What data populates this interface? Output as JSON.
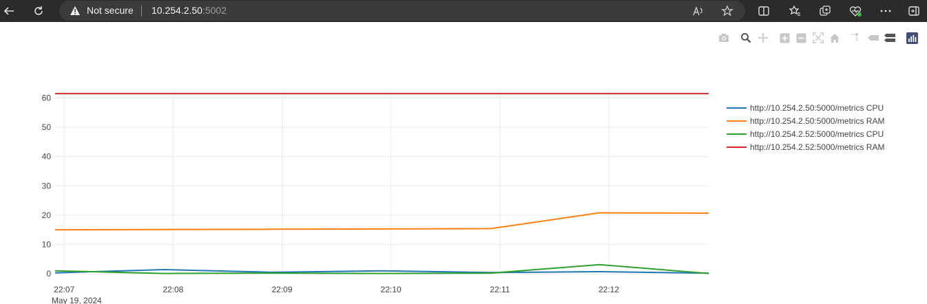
{
  "browser": {
    "security_status": "Not secure",
    "url_host": "10.254.2.50",
    "url_port": ":5002",
    "icons": [
      "back-arrow-icon",
      "refresh-icon",
      "warning-icon",
      "read-aloud-icon",
      "favorite-star-icon",
      "split-screen-icon",
      "favorites-icon",
      "collections-icon",
      "browser-essentials-icon",
      "more-icon",
      "sidebar-toggle-icon"
    ]
  },
  "modebar": {
    "icons": [
      "camera-icon",
      "zoom-icon",
      "pan-icon",
      "zoom-in-icon",
      "zoom-out-icon",
      "autoscale-icon",
      "reset-axes-icon",
      "spike-lines-icon",
      "hover-closest-icon",
      "hover-compare-icon",
      "plotly-logo-icon"
    ]
  },
  "colors": {
    "series1": "#1f77b4",
    "series2": "#ff7f0e",
    "series3": "#2ca02c",
    "series4": "#d62728"
  },
  "chart_data": {
    "type": "line",
    "title": "",
    "xlabel": "",
    "ylabel": "",
    "x_date_label": "May 19, 2024",
    "x_ticks": [
      "22:07",
      "22:08",
      "22:09",
      "22:10",
      "22:11",
      "22:12"
    ],
    "x": [
      "22:06:55",
      "22:07:55",
      "22:08:55",
      "22:09:55",
      "22:10:55",
      "22:11:55",
      "22:12:55"
    ],
    "xlim": [
      "22:06:55",
      "22:12:55"
    ],
    "y_ticks": [
      0,
      10,
      20,
      30,
      40,
      50,
      60
    ],
    "ylim": [
      0,
      62
    ],
    "grid": true,
    "legend_placement": "right",
    "series": [
      {
        "name": "http://10.254.2.50:5000/metrics CPU",
        "color_key": "series1",
        "values": [
          0.3,
          1.4,
          0.5,
          1.0,
          0.4,
          0.7,
          0.2
        ]
      },
      {
        "name": "http://10.254.2.50:5000/metrics RAM",
        "color_key": "series2",
        "values": [
          15.0,
          15.1,
          15.2,
          15.3,
          15.4,
          20.8,
          20.7
        ]
      },
      {
        "name": "http://10.254.2.52:5000/metrics CPU",
        "color_key": "series3",
        "values": [
          1.0,
          0.1,
          0.2,
          0.1,
          0.2,
          3.1,
          0.1
        ]
      },
      {
        "name": "http://10.254.2.52:5000/metrics RAM",
        "color_key": "series4",
        "values": [
          61.5,
          61.5,
          61.5,
          61.5,
          61.5,
          61.5,
          61.5
        ]
      }
    ]
  }
}
